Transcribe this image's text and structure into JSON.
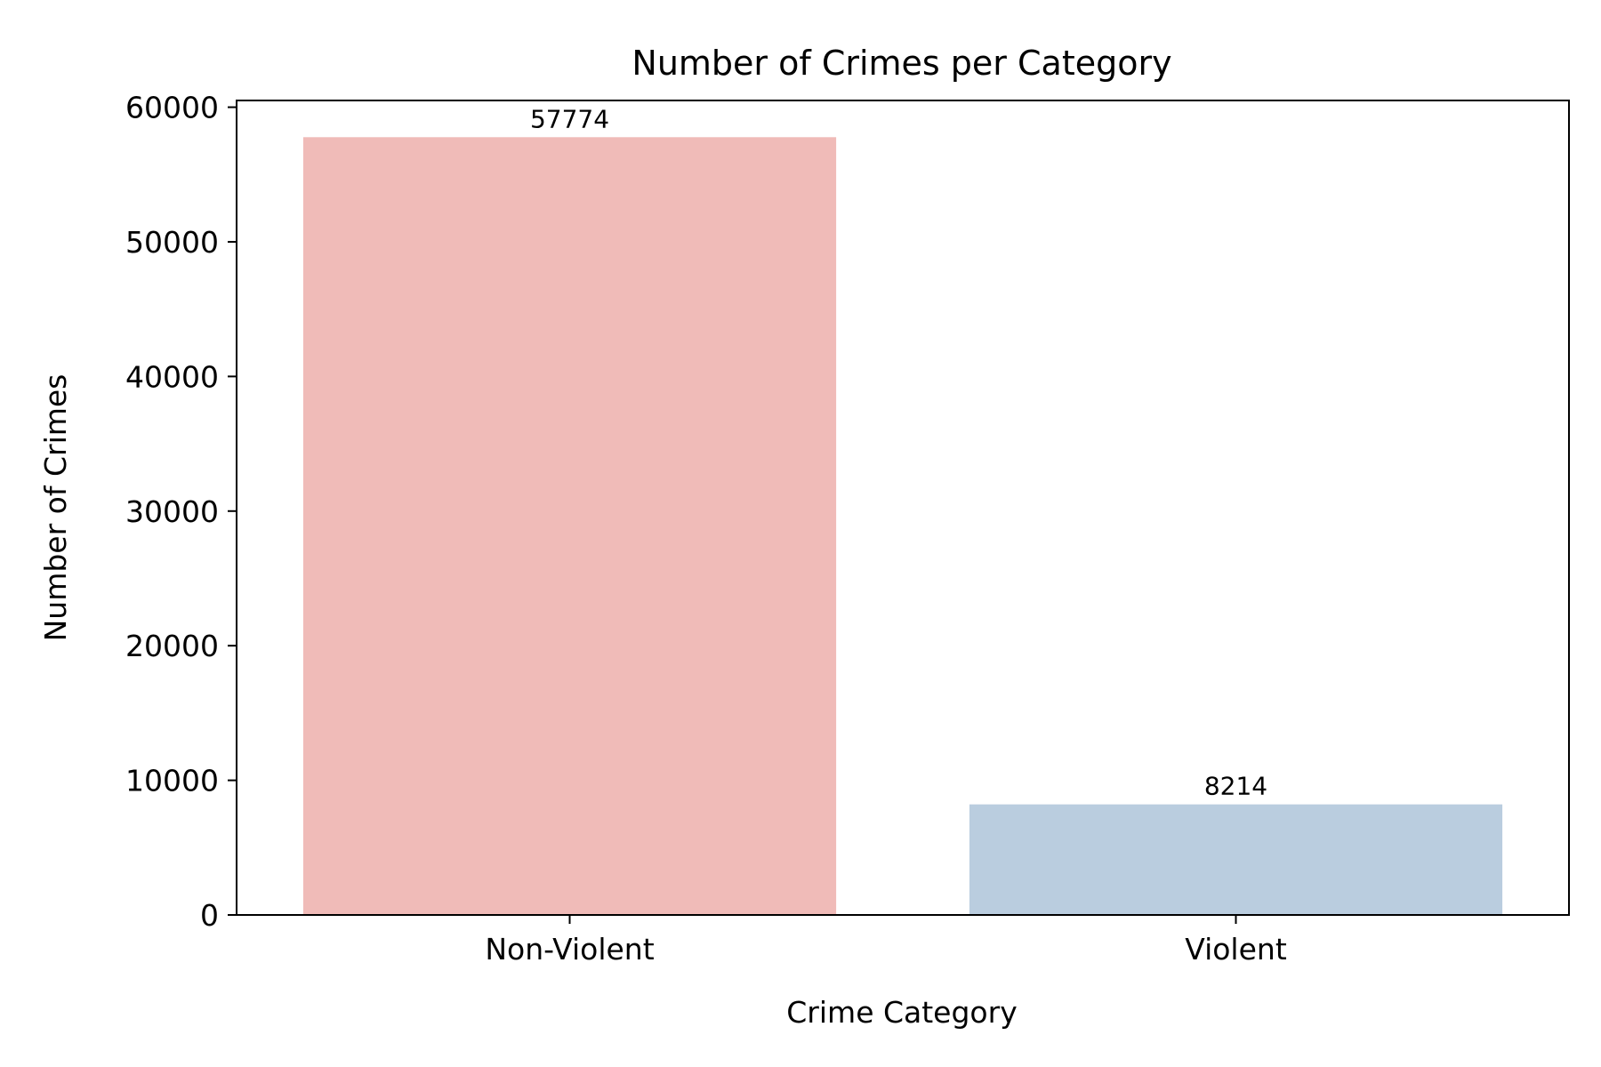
{
  "chart_data": {
    "type": "bar",
    "title": "Number of Crimes per Category",
    "xlabel": "Crime Category",
    "ylabel": "Number of Crimes",
    "categories": [
      "Non-Violent",
      "Violent"
    ],
    "values": [
      57774,
      8214
    ],
    "data_labels": [
      "57774",
      "8214"
    ],
    "bar_colors": [
      "#f0bbb8",
      "#bacddf"
    ],
    "ylim": [
      0,
      60500
    ],
    "yticks": [
      0,
      10000,
      20000,
      30000,
      40000,
      50000,
      60000
    ],
    "ytick_labels": [
      "0",
      "10000",
      "20000",
      "30000",
      "40000",
      "50000",
      "60000"
    ],
    "grid": false,
    "legend": "none"
  }
}
